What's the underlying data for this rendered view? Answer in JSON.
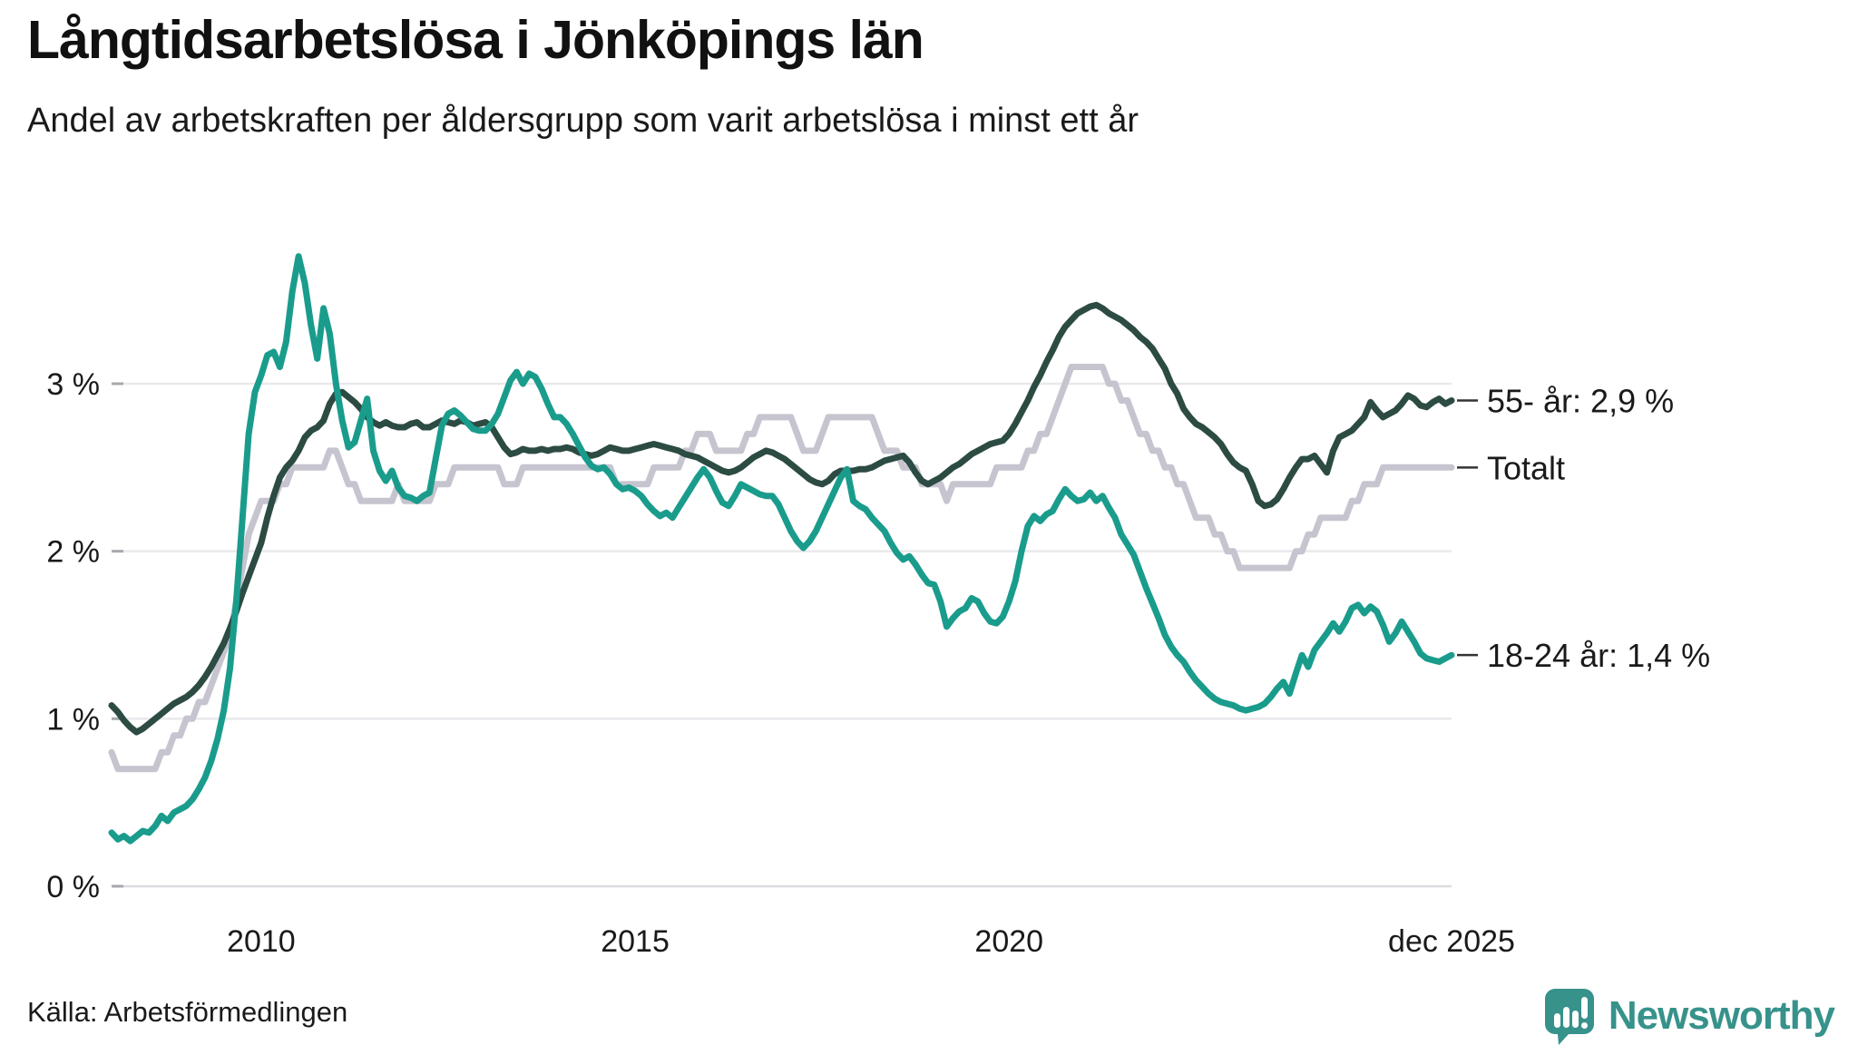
{
  "title": "Långtidsarbetslösa i Jönköpings län",
  "subtitle": "Andel av arbetskraften per åldersgrupp som varit arbetslösa i minst ett år",
  "source": "Källa: Arbetsförmedlingen",
  "branding": {
    "name": "Newsworthy",
    "logo_icon": "bar-chart-speech-bubble-icon",
    "color": "#37928B"
  },
  "chart_data": {
    "type": "line",
    "title": "Långtidsarbetslösa i Jönköpings län",
    "subtitle": "Andel av arbetskraften per åldersgrupp som varit arbetslösa i minst ett år",
    "unit": "%",
    "x_start_year": 2008,
    "x_end_label_month": "dec 2025",
    "months_per_point": 1,
    "n_points": 216,
    "grid": true,
    "legend_position": "right-end-labels",
    "ylim": [
      0,
      3.95
    ],
    "y_ticks": [
      {
        "value": 3,
        "label": "3 %"
      },
      {
        "value": 2,
        "label": "2 %"
      },
      {
        "value": 1,
        "label": "1 %"
      },
      {
        "value": 0,
        "label": "0 %"
      }
    ],
    "x_ticks": [
      {
        "year": 2010.0,
        "label": "2010"
      },
      {
        "year": 2015.0,
        "label": "2015"
      },
      {
        "year": 2020.0,
        "label": "2020"
      },
      {
        "year": 2025.9167,
        "label": "dec 2025"
      }
    ],
    "series": [
      {
        "name": "Totalt",
        "end_label": "Totalt",
        "end_value": 2.5,
        "color": "#C6C4CF",
        "values": [
          0.8,
          0.7,
          0.7,
          0.7,
          0.7,
          0.7,
          0.7,
          0.7,
          0.8,
          0.8,
          0.9,
          0.9,
          1.0,
          1.0,
          1.1,
          1.1,
          1.2,
          1.3,
          1.4,
          1.5,
          1.7,
          1.9,
          2.1,
          2.2,
          2.3,
          2.3,
          2.3,
          2.4,
          2.4,
          2.5,
          2.5,
          2.5,
          2.5,
          2.5,
          2.5,
          2.6,
          2.6,
          2.5,
          2.4,
          2.4,
          2.3,
          2.3,
          2.3,
          2.3,
          2.3,
          2.3,
          2.4,
          2.3,
          2.3,
          2.3,
          2.3,
          2.3,
          2.4,
          2.4,
          2.4,
          2.5,
          2.5,
          2.5,
          2.5,
          2.5,
          2.5,
          2.5,
          2.5,
          2.4,
          2.4,
          2.4,
          2.5,
          2.5,
          2.5,
          2.5,
          2.5,
          2.5,
          2.5,
          2.5,
          2.5,
          2.5,
          2.5,
          2.5,
          2.5,
          2.5,
          2.5,
          2.4,
          2.4,
          2.4,
          2.4,
          2.4,
          2.4,
          2.5,
          2.5,
          2.5,
          2.5,
          2.5,
          2.6,
          2.6,
          2.7,
          2.7,
          2.7,
          2.6,
          2.6,
          2.6,
          2.6,
          2.6,
          2.7,
          2.7,
          2.8,
          2.8,
          2.8,
          2.8,
          2.8,
          2.8,
          2.7,
          2.6,
          2.6,
          2.6,
          2.7,
          2.8,
          2.8,
          2.8,
          2.8,
          2.8,
          2.8,
          2.8,
          2.8,
          2.7,
          2.6,
          2.6,
          2.6,
          2.5,
          2.5,
          2.5,
          2.4,
          2.4,
          2.4,
          2.4,
          2.3,
          2.4,
          2.4,
          2.4,
          2.4,
          2.4,
          2.4,
          2.4,
          2.5,
          2.5,
          2.5,
          2.5,
          2.5,
          2.6,
          2.6,
          2.7,
          2.7,
          2.8,
          2.9,
          3.0,
          3.1,
          3.1,
          3.1,
          3.1,
          3.1,
          3.1,
          3.0,
          3.0,
          2.9,
          2.9,
          2.8,
          2.7,
          2.7,
          2.6,
          2.6,
          2.5,
          2.5,
          2.4,
          2.4,
          2.3,
          2.2,
          2.2,
          2.2,
          2.1,
          2.1,
          2.0,
          2.0,
          1.9,
          1.9,
          1.9,
          1.9,
          1.9,
          1.9,
          1.9,
          1.9,
          1.9,
          2.0,
          2.0,
          2.1,
          2.1,
          2.2,
          2.2,
          2.2,
          2.2,
          2.2,
          2.3,
          2.3,
          2.4,
          2.4,
          2.4,
          2.5,
          2.5,
          2.5,
          2.5,
          2.5,
          2.5,
          2.5,
          2.5,
          2.5,
          2.5,
          2.5,
          2.5
        ]
      },
      {
        "name": "55- år",
        "end_label": "55- år: 2,9 %",
        "end_value": 2.9,
        "color": "#2C4B43",
        "values": [
          1.08,
          1.04,
          0.99,
          0.95,
          0.92,
          0.94,
          0.97,
          1.0,
          1.03,
          1.06,
          1.09,
          1.11,
          1.13,
          1.16,
          1.2,
          1.25,
          1.31,
          1.38,
          1.45,
          1.54,
          1.64,
          1.75,
          1.85,
          1.95,
          2.05,
          2.2,
          2.33,
          2.44,
          2.5,
          2.54,
          2.6,
          2.68,
          2.72,
          2.74,
          2.78,
          2.88,
          2.94,
          2.95,
          2.92,
          2.89,
          2.85,
          2.8,
          2.77,
          2.75,
          2.77,
          2.75,
          2.74,
          2.74,
          2.76,
          2.77,
          2.74,
          2.74,
          2.76,
          2.78,
          2.77,
          2.76,
          2.78,
          2.77,
          2.75,
          2.76,
          2.77,
          2.74,
          2.68,
          2.62,
          2.58,
          2.59,
          2.61,
          2.6,
          2.6,
          2.61,
          2.6,
          2.61,
          2.61,
          2.62,
          2.61,
          2.59,
          2.58,
          2.57,
          2.58,
          2.6,
          2.62,
          2.61,
          2.6,
          2.6,
          2.61,
          2.62,
          2.63,
          2.64,
          2.63,
          2.62,
          2.61,
          2.6,
          2.58,
          2.57,
          2.56,
          2.54,
          2.52,
          2.5,
          2.48,
          2.47,
          2.48,
          2.5,
          2.53,
          2.56,
          2.58,
          2.6,
          2.59,
          2.57,
          2.55,
          2.52,
          2.49,
          2.46,
          2.43,
          2.41,
          2.4,
          2.42,
          2.46,
          2.48,
          2.48,
          2.48,
          2.49,
          2.49,
          2.5,
          2.52,
          2.54,
          2.55,
          2.56,
          2.57,
          2.53,
          2.47,
          2.42,
          2.4,
          2.42,
          2.44,
          2.47,
          2.5,
          2.52,
          2.55,
          2.58,
          2.6,
          2.62,
          2.64,
          2.65,
          2.66,
          2.7,
          2.76,
          2.83,
          2.9,
          2.98,
          3.05,
          3.13,
          3.2,
          3.28,
          3.34,
          3.38,
          3.42,
          3.44,
          3.46,
          3.47,
          3.45,
          3.42,
          3.4,
          3.38,
          3.35,
          3.32,
          3.28,
          3.25,
          3.21,
          3.15,
          3.09,
          3.0,
          2.94,
          2.85,
          2.8,
          2.76,
          2.74,
          2.71,
          2.68,
          2.64,
          2.58,
          2.53,
          2.5,
          2.48,
          2.4,
          2.3,
          2.27,
          2.28,
          2.31,
          2.37,
          2.44,
          2.5,
          2.55,
          2.55,
          2.57,
          2.52,
          2.47,
          2.6,
          2.68,
          2.7,
          2.72,
          2.76,
          2.8,
          2.89,
          2.84,
          2.8,
          2.82,
          2.84,
          2.88,
          2.93,
          2.91,
          2.87,
          2.86,
          2.89,
          2.91,
          2.88,
          2.9
        ]
      },
      {
        "name": "18-24 år",
        "end_label": "18-24 år: 1,4 %",
        "end_value": 1.4,
        "color": "#1A9C8C",
        "values": [
          0.32,
          0.28,
          0.3,
          0.27,
          0.3,
          0.33,
          0.32,
          0.36,
          0.42,
          0.39,
          0.44,
          0.46,
          0.48,
          0.52,
          0.58,
          0.65,
          0.75,
          0.88,
          1.05,
          1.3,
          1.7,
          2.2,
          2.7,
          2.95,
          3.05,
          3.17,
          3.19,
          3.1,
          3.25,
          3.55,
          3.76,
          3.6,
          3.35,
          3.15,
          3.45,
          3.3,
          3.0,
          2.78,
          2.62,
          2.65,
          2.78,
          2.91,
          2.6,
          2.48,
          2.42,
          2.48,
          2.38,
          2.33,
          2.32,
          2.3,
          2.33,
          2.35,
          2.55,
          2.75,
          2.82,
          2.84,
          2.81,
          2.77,
          2.73,
          2.72,
          2.72,
          2.76,
          2.82,
          2.92,
          3.02,
          3.07,
          3.0,
          3.06,
          3.04,
          2.97,
          2.88,
          2.8,
          2.8,
          2.76,
          2.7,
          2.63,
          2.56,
          2.51,
          2.49,
          2.5,
          2.46,
          2.4,
          2.37,
          2.38,
          2.36,
          2.33,
          2.28,
          2.24,
          2.21,
          2.23,
          2.2,
          2.26,
          2.32,
          2.38,
          2.44,
          2.49,
          2.44,
          2.36,
          2.29,
          2.27,
          2.33,
          2.4,
          2.38,
          2.36,
          2.34,
          2.33,
          2.33,
          2.28,
          2.2,
          2.12,
          2.06,
          2.02,
          2.06,
          2.12,
          2.2,
          2.28,
          2.36,
          2.44,
          2.49,
          2.3,
          2.27,
          2.25,
          2.2,
          2.16,
          2.12,
          2.05,
          1.99,
          1.95,
          1.97,
          1.92,
          1.86,
          1.81,
          1.8,
          1.7,
          1.55,
          1.6,
          1.64,
          1.66,
          1.72,
          1.7,
          1.63,
          1.58,
          1.57,
          1.61,
          1.7,
          1.82,
          2.0,
          2.15,
          2.21,
          2.18,
          2.22,
          2.24,
          2.31,
          2.37,
          2.33,
          2.3,
          2.31,
          2.35,
          2.3,
          2.33,
          2.26,
          2.2,
          2.1,
          2.04,
          1.98,
          1.88,
          1.78,
          1.69,
          1.6,
          1.5,
          1.43,
          1.38,
          1.34,
          1.28,
          1.23,
          1.19,
          1.15,
          1.12,
          1.1,
          1.09,
          1.08,
          1.06,
          1.05,
          1.06,
          1.07,
          1.09,
          1.13,
          1.18,
          1.22,
          1.15,
          1.27,
          1.38,
          1.31,
          1.41,
          1.46,
          1.51,
          1.57,
          1.52,
          1.58,
          1.66,
          1.68,
          1.63,
          1.67,
          1.64,
          1.56,
          1.46,
          1.51,
          1.58,
          1.52,
          1.46,
          1.39,
          1.36,
          1.35,
          1.34,
          1.36,
          1.38
        ]
      }
    ],
    "colors": {
      "grid": "#E9E9ED",
      "baseline": "#DCDCE0",
      "tick_stub": "#A8A8AD",
      "end_tick": "#333333",
      "text": "#1A1A1A"
    }
  }
}
